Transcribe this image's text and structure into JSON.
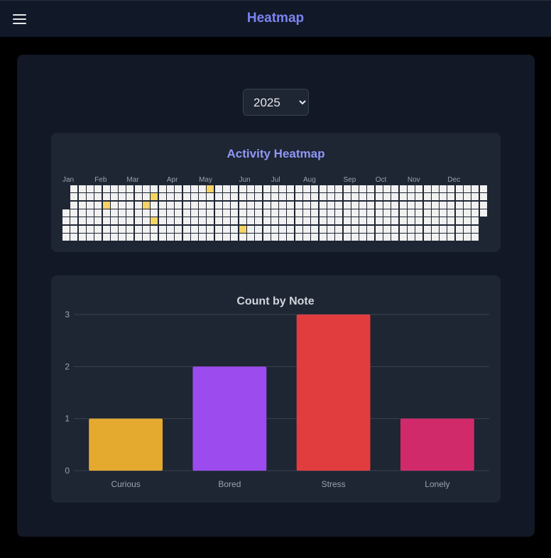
{
  "header": {
    "title": "Heatmap",
    "menu_icon": "hamburger-icon"
  },
  "year_select": {
    "selected": "2025",
    "options": [
      "2025"
    ]
  },
  "heatmap": {
    "title": "Activity Heatmap",
    "months": [
      "Jan",
      "Feb",
      "Mar",
      "Apr",
      "May",
      "Jun",
      "Jul",
      "Aug",
      "Sep",
      "Oct",
      "Nov",
      "Dec"
    ],
    "empty_color": "#f1f1f1",
    "active_color": "#f6d365",
    "active_dates": [
      "2025-02-04",
      "2025-03-11",
      "2025-03-17",
      "2025-03-20",
      "2025-05-04",
      "2025-06-06"
    ]
  },
  "chart_data": {
    "type": "bar",
    "title": "Count by Note",
    "categories": [
      "Curious",
      "Bored",
      "Stress",
      "Lonely"
    ],
    "values": [
      1,
      2,
      3,
      1
    ],
    "colors": [
      "#e3aa2f",
      "#9c4bef",
      "#e13d3f",
      "#d12a6b"
    ],
    "ylim": [
      0,
      3
    ],
    "yticks": [
      "0",
      "1",
      "2",
      "3"
    ],
    "grid": true,
    "legend": "none"
  }
}
